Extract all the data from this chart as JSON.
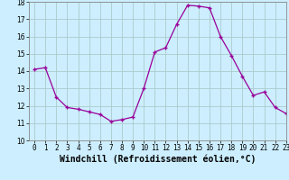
{
  "x": [
    0,
    1,
    2,
    3,
    4,
    5,
    6,
    7,
    8,
    9,
    10,
    11,
    12,
    13,
    14,
    15,
    16,
    17,
    18,
    19,
    20,
    21,
    22,
    23
  ],
  "y": [
    14.1,
    14.2,
    12.5,
    11.9,
    11.8,
    11.65,
    11.5,
    11.1,
    11.2,
    11.35,
    13.0,
    15.1,
    15.35,
    16.7,
    17.8,
    17.75,
    17.65,
    16.0,
    14.9,
    13.7,
    12.6,
    12.8,
    11.9,
    11.55
  ],
  "xlabel": "Windchill (Refroidissement éolien,°C)",
  "ylabel": "",
  "line_color": "#990099",
  "marker": "+",
  "background_color": "#cceeff",
  "grid_color": "#aacccc",
  "xlim": [
    -0.5,
    23
  ],
  "ylim": [
    10,
    18
  ],
  "yticks": [
    10,
    11,
    12,
    13,
    14,
    15,
    16,
    17,
    18
  ],
  "xticks": [
    0,
    1,
    2,
    3,
    4,
    5,
    6,
    7,
    8,
    9,
    10,
    11,
    12,
    13,
    14,
    15,
    16,
    17,
    18,
    19,
    20,
    21,
    22,
    23
  ],
  "tick_fontsize": 5.5,
  "xlabel_fontsize": 7.0,
  "marker_size": 3.5,
  "linewidth": 0.9
}
